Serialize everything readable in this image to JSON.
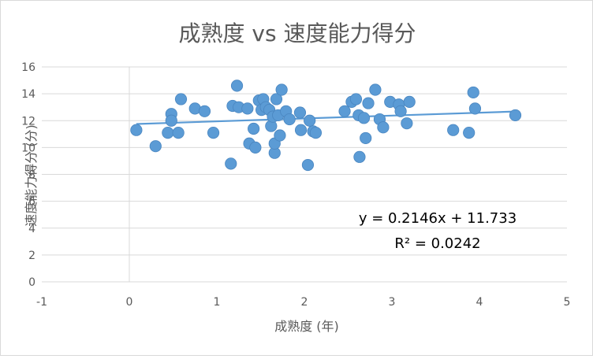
{
  "chart_data": {
    "type": "scatter",
    "title": "成熟度 vs 速度能力得分",
    "xlabel": "成熟度 (年)",
    "ylabel": "速度能力得分 (分)",
    "xlim": [
      -1,
      5
    ],
    "ylim": [
      0,
      16
    ],
    "xticks": [
      -1,
      0,
      1,
      2,
      3,
      4,
      5
    ],
    "yticks": [
      0,
      2,
      4,
      6,
      8,
      10,
      12,
      14,
      16
    ],
    "grid": "horizontal",
    "legend": "none",
    "colors": {
      "point": "#5b9bd5",
      "trendline": "#5b9bd5",
      "grid": "#d9d9d9"
    },
    "points": [
      {
        "x": 0.08,
        "y": 11.3
      },
      {
        "x": 0.3,
        "y": 10.1
      },
      {
        "x": 0.44,
        "y": 11.1
      },
      {
        "x": 0.48,
        "y": 12.5
      },
      {
        "x": 0.48,
        "y": 12.0
      },
      {
        "x": 0.56,
        "y": 11.1
      },
      {
        "x": 0.59,
        "y": 13.6
      },
      {
        "x": 0.75,
        "y": 12.9
      },
      {
        "x": 0.86,
        "y": 12.7
      },
      {
        "x": 0.96,
        "y": 11.1
      },
      {
        "x": 1.16,
        "y": 8.8
      },
      {
        "x": 1.18,
        "y": 13.1
      },
      {
        "x": 1.23,
        "y": 14.6
      },
      {
        "x": 1.25,
        "y": 13.0
      },
      {
        "x": 1.35,
        "y": 12.9
      },
      {
        "x": 1.37,
        "y": 10.3
      },
      {
        "x": 1.42,
        "y": 11.4
      },
      {
        "x": 1.44,
        "y": 10.0
      },
      {
        "x": 1.48,
        "y": 13.5
      },
      {
        "x": 1.51,
        "y": 12.8
      },
      {
        "x": 1.53,
        "y": 13.6
      },
      {
        "x": 1.56,
        "y": 13.0
      },
      {
        "x": 1.6,
        "y": 12.8
      },
      {
        "x": 1.62,
        "y": 11.6
      },
      {
        "x": 1.64,
        "y": 12.3
      },
      {
        "x": 1.66,
        "y": 9.6
      },
      {
        "x": 1.66,
        "y": 10.3
      },
      {
        "x": 1.68,
        "y": 13.6
      },
      {
        "x": 1.7,
        "y": 12.4
      },
      {
        "x": 1.72,
        "y": 10.9
      },
      {
        "x": 1.74,
        "y": 14.3
      },
      {
        "x": 1.79,
        "y": 12.7
      },
      {
        "x": 1.83,
        "y": 12.1
      },
      {
        "x": 1.95,
        "y": 12.6
      },
      {
        "x": 1.96,
        "y": 11.3
      },
      {
        "x": 2.04,
        "y": 8.7
      },
      {
        "x": 2.06,
        "y": 12.0
      },
      {
        "x": 2.1,
        "y": 11.2
      },
      {
        "x": 2.13,
        "y": 11.1
      },
      {
        "x": 2.46,
        "y": 12.7
      },
      {
        "x": 2.54,
        "y": 13.4
      },
      {
        "x": 2.59,
        "y": 13.6
      },
      {
        "x": 2.62,
        "y": 12.4
      },
      {
        "x": 2.63,
        "y": 9.3
      },
      {
        "x": 2.68,
        "y": 12.2
      },
      {
        "x": 2.7,
        "y": 10.7
      },
      {
        "x": 2.73,
        "y": 13.3
      },
      {
        "x": 2.81,
        "y": 14.3
      },
      {
        "x": 2.86,
        "y": 12.1
      },
      {
        "x": 2.9,
        "y": 11.5
      },
      {
        "x": 2.98,
        "y": 13.4
      },
      {
        "x": 3.08,
        "y": 13.2
      },
      {
        "x": 3.1,
        "y": 12.7
      },
      {
        "x": 3.17,
        "y": 11.8
      },
      {
        "x": 3.2,
        "y": 13.4
      },
      {
        "x": 3.7,
        "y": 11.3
      },
      {
        "x": 3.88,
        "y": 11.1
      },
      {
        "x": 3.93,
        "y": 14.1
      },
      {
        "x": 3.95,
        "y": 12.9
      },
      {
        "x": 4.41,
        "y": 12.4
      }
    ],
    "trendline": {
      "slope": 0.2146,
      "intercept": 11.733,
      "x_range": [
        0.08,
        4.41
      ],
      "equation": "y = 0.2146x + 11.733",
      "r_squared": "R² = 0.0242"
    }
  }
}
